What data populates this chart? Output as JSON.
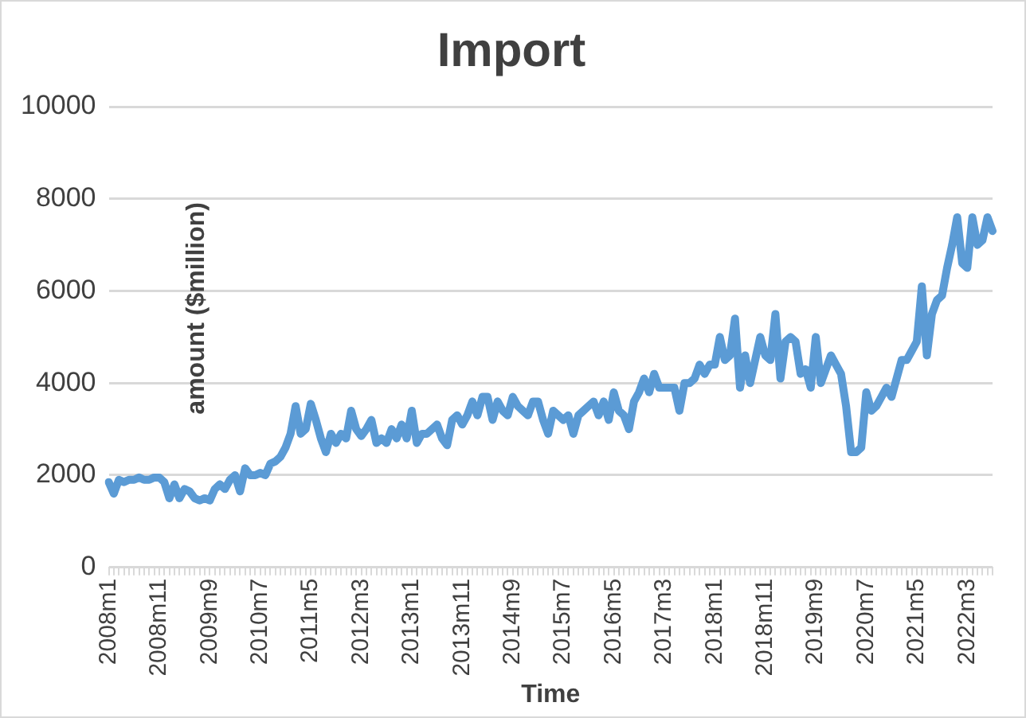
{
  "chart_data": {
    "type": "line",
    "title": "Import",
    "xlabel": "Time",
    "ylabel": "amount ($million)",
    "categories": [
      "2008m1",
      null,
      null,
      null,
      null,
      null,
      null,
      null,
      null,
      null,
      "2008m11",
      null,
      null,
      null,
      null,
      null,
      null,
      null,
      null,
      null,
      "2009m9",
      null,
      null,
      null,
      null,
      null,
      null,
      null,
      null,
      null,
      "2010m7",
      null,
      null,
      null,
      null,
      null,
      null,
      null,
      null,
      null,
      "2011m5",
      null,
      null,
      null,
      null,
      null,
      null,
      null,
      null,
      null,
      "2012m3",
      null,
      null,
      null,
      null,
      null,
      null,
      null,
      null,
      null,
      "2013m1",
      null,
      null,
      null,
      null,
      null,
      null,
      null,
      null,
      null,
      "2013m11",
      null,
      null,
      null,
      null,
      null,
      null,
      null,
      null,
      null,
      "2014m9",
      null,
      null,
      null,
      null,
      null,
      null,
      null,
      null,
      null,
      "2015m7",
      null,
      null,
      null,
      null,
      null,
      null,
      null,
      null,
      null,
      "2016m5",
      null,
      null,
      null,
      null,
      null,
      null,
      null,
      null,
      null,
      "2017m3",
      null,
      null,
      null,
      null,
      null,
      null,
      null,
      null,
      null,
      "2018m1",
      null,
      null,
      null,
      null,
      null,
      null,
      null,
      null,
      null,
      "2018m11",
      null,
      null,
      null,
      null,
      null,
      null,
      null,
      null,
      null,
      "2019m9",
      null,
      null,
      null,
      null,
      null,
      null,
      null,
      null,
      null,
      "2020m7",
      null,
      null,
      null,
      null,
      null,
      null,
      null,
      null,
      null,
      "2021m5",
      null,
      null,
      null,
      null,
      null,
      null,
      null,
      null,
      null,
      "2022m3",
      null,
      null,
      null,
      null,
      null
    ],
    "series": [
      {
        "color": "#5b9bd5",
        "values": [
          1850,
          1600,
          1900,
          1850,
          1900,
          1900,
          1950,
          1900,
          1900,
          1950,
          1950,
          1850,
          1500,
          1800,
          1500,
          1700,
          1650,
          1500,
          1450,
          1500,
          1450,
          1700,
          1800,
          1700,
          1900,
          2000,
          1650,
          2150,
          2000,
          2000,
          2050,
          2000,
          2250,
          2300,
          2400,
          2600,
          2900,
          3500,
          2900,
          3000,
          3550,
          3200,
          2800,
          2500,
          2900,
          2700,
          2900,
          2800,
          3400,
          3000,
          2850,
          3000,
          3200,
          2700,
          2800,
          2700,
          3000,
          2800,
          3100,
          2800,
          3400,
          2700,
          2900,
          2900,
          3000,
          3100,
          2800,
          2650,
          3200,
          3300,
          3100,
          3300,
          3600,
          3300,
          3700,
          3700,
          3200,
          3600,
          3400,
          3300,
          3700,
          3500,
          3400,
          3300,
          3600,
          3600,
          3200,
          2900,
          3400,
          3300,
          3200,
          3300,
          2900,
          3300,
          3400,
          3500,
          3600,
          3300,
          3600,
          3200,
          3800,
          3400,
          3300,
          3000,
          3600,
          3800,
          4100,
          3800,
          4200,
          3900,
          3900,
          3900,
          3900,
          3400,
          4000,
          4000,
          4100,
          4400,
          4200,
          4400,
          4400,
          5000,
          4500,
          4600,
          5400,
          3900,
          4600,
          4000,
          4500,
          5000,
          4600,
          4500,
          5500,
          4100,
          4900,
          5000,
          4900,
          4200,
          4300,
          3900,
          5000,
          4000,
          4300,
          4600,
          4400,
          4200,
          3500,
          2500,
          2500,
          2600,
          3800,
          3400,
          3500,
          3700,
          3900,
          3700,
          4100,
          4500,
          4500,
          4700,
          4900,
          6100,
          4600,
          5500,
          5800,
          5900,
          6500,
          7000,
          7600,
          6600,
          6500,
          7600,
          7000,
          7100,
          7600,
          7300
        ]
      }
    ],
    "ylim": [
      0,
      10000
    ],
    "yticks": [
      0,
      2000,
      4000,
      6000,
      8000,
      10000
    ],
    "grid": "y",
    "legend": false,
    "marker": "none",
    "line_style": "solid"
  }
}
